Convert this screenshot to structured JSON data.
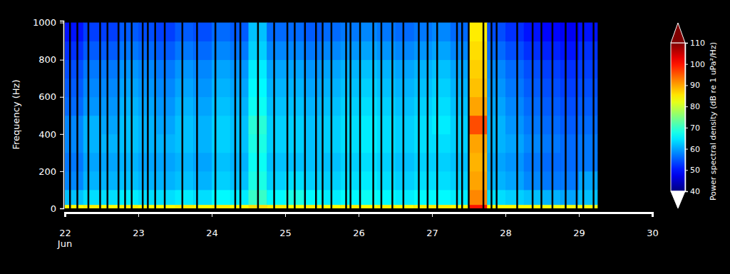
{
  "chart_data": {
    "type": "heatmap",
    "ylabel": "Frequency (Hz)",
    "colorbar_label": "Power spectral density (dB re 1 uPa²/Hz)",
    "xlim": [
      22,
      30
    ],
    "xticks": [
      22,
      23,
      24,
      25,
      26,
      27,
      28,
      29,
      30
    ],
    "ylim": [
      0,
      1010
    ],
    "yticks": [
      0,
      200,
      400,
      600,
      800,
      1000
    ],
    "zlim": [
      40,
      110
    ],
    "zticks": [
      40,
      50,
      60,
      70,
      80,
      90,
      100,
      110
    ],
    "annotations": [
      {
        "text": "Jun",
        "x": 22
      }
    ],
    "x_bins": [
      22,
      22.25,
      22.5,
      22.75,
      23,
      23.25,
      23.5,
      23.75,
      24,
      24.25,
      24.5,
      24.75,
      25,
      25.25,
      25.5,
      25.75,
      26,
      26.25,
      26.5,
      26.75,
      27,
      27.25,
      27.5,
      27.75,
      28,
      28.25,
      28.5,
      28.75,
      29,
      29.25
    ],
    "y_bins": [
      0,
      20,
      100,
      200,
      300,
      400,
      500,
      600,
      700,
      800,
      900,
      1000
    ],
    "values": [
      [
        84,
        85,
        84,
        85,
        84,
        84,
        85,
        84,
        85,
        84,
        86,
        85,
        84,
        85,
        84,
        85,
        84,
        85,
        84,
        85,
        85,
        84,
        100,
        84,
        84,
        84,
        83,
        83,
        83
      ],
      [
        62,
        64,
        64,
        65,
        64,
        64,
        65,
        64,
        66,
        65,
        70,
        66,
        68,
        66,
        65,
        66,
        67,
        66,
        65,
        66,
        66,
        65,
        92,
        64,
        63,
        62,
        61,
        60,
        62
      ],
      [
        58,
        61,
        61,
        62,
        61,
        61,
        62,
        61,
        63,
        62,
        68,
        63,
        64,
        63,
        63,
        64,
        65,
        64,
        63,
        64,
        64,
        63,
        90,
        61,
        60,
        58,
        57,
        57,
        60
      ],
      [
        57,
        60,
        60,
        61,
        60,
        60,
        61,
        60,
        62,
        61,
        67,
        62,
        62,
        62,
        62,
        63,
        64,
        63,
        62,
        63,
        63,
        62,
        89,
        60,
        59,
        57,
        56,
        56,
        57
      ],
      [
        58,
        61,
        61,
        62,
        61,
        61,
        62,
        61,
        63,
        62,
        68,
        63,
        63,
        62,
        63,
        64,
        65,
        64,
        63,
        64,
        64,
        63,
        90,
        61,
        60,
        58,
        57,
        56,
        57
      ],
      [
        58,
        61,
        60,
        62,
        61,
        60,
        62,
        61,
        63,
        62,
        69,
        63,
        63,
        62,
        63,
        64,
        65,
        64,
        63,
        64,
        65,
        63,
        96,
        61,
        59,
        57,
        56,
        55,
        56
      ],
      [
        56,
        59,
        59,
        61,
        60,
        59,
        61,
        60,
        62,
        61,
        67,
        62,
        62,
        61,
        62,
        63,
        64,
        63,
        62,
        63,
        64,
        62,
        90,
        60,
        58,
        56,
        55,
        54,
        55
      ],
      [
        55,
        58,
        58,
        60,
        59,
        58,
        60,
        59,
        61,
        60,
        66,
        61,
        61,
        60,
        61,
        62,
        63,
        62,
        61,
        62,
        63,
        61,
        88,
        59,
        57,
        55,
        54,
        53,
        54
      ],
      [
        54,
        57,
        57,
        59,
        58,
        57,
        59,
        58,
        60,
        59,
        65,
        60,
        60,
        59,
        60,
        61,
        62,
        61,
        60,
        61,
        62,
        60,
        87,
        58,
        56,
        54,
        53,
        52,
        53
      ],
      [
        52,
        55,
        55,
        57,
        56,
        55,
        57,
        56,
        58,
        57,
        63,
        58,
        58,
        57,
        58,
        59,
        60,
        59,
        58,
        59,
        60,
        58,
        86,
        56,
        54,
        52,
        51,
        50,
        52
      ],
      [
        50,
        53,
        53,
        55,
        54,
        53,
        55,
        54,
        56,
        55,
        62,
        56,
        56,
        55,
        56,
        57,
        58,
        57,
        56,
        57,
        58,
        56,
        85,
        54,
        52,
        50,
        49,
        48,
        50
      ]
    ],
    "gaps": [
      22.07,
      22.17,
      22.32,
      22.48,
      22.58,
      22.73,
      22.82,
      22.91,
      23.06,
      23.13,
      23.23,
      23.36,
      23.6,
      23.8,
      24.05,
      24.32,
      24.39,
      24.63,
      24.85,
      25.03,
      25.13,
      25.27,
      25.42,
      25.51,
      25.63,
      25.83,
      25.89,
      26.02,
      26.2,
      26.31,
      26.46,
      26.61,
      26.82,
      26.94,
      27.07,
      27.34,
      27.41,
      27.5,
      27.7,
      27.81,
      27.88,
      28.16,
      28.37,
      28.49,
      28.64,
      28.82,
      28.97,
      29.06,
      29.2
    ]
  }
}
